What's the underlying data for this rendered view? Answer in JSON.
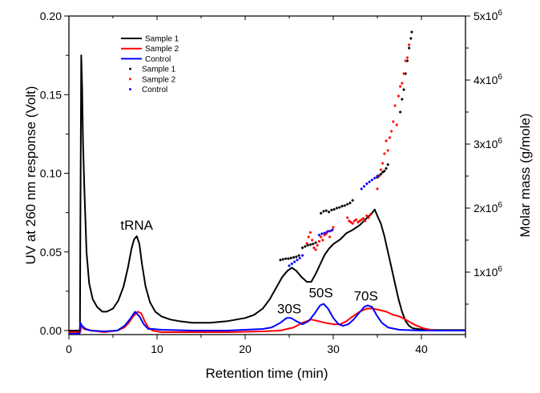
{
  "chart_data": {
    "type": "line",
    "title": "",
    "xlabel": "Retention time (min)",
    "ylabel": "UV at 260 nm response (Volt)",
    "y2label": "Molar mass (g/mole)",
    "xlim": [
      0,
      45
    ],
    "ylim": [
      -0.002,
      0.2
    ],
    "y2lim": [
      0,
      5000000
    ],
    "grid": false,
    "legend_position": "top-left",
    "x_ticks": [
      0,
      10,
      20,
      30,
      40
    ],
    "x_tick_labels": [
      "0",
      "10",
      "20",
      "30",
      "40"
    ],
    "y_ticks": [
      0.0,
      0.05,
      0.1,
      0.15,
      0.2
    ],
    "y_tick_labels": [
      "0.00",
      "0.05",
      "0.10",
      "0.15",
      "0.20"
    ],
    "y2_ticks": [
      1000000,
      2000000,
      3000000,
      4000000,
      5000000
    ],
    "y2_tick_labels": [
      {
        "base": "1x10",
        "exp": "6"
      },
      {
        "base": "2x10",
        "exp": "6"
      },
      {
        "base": "3x10",
        "exp": "6"
      },
      {
        "base": "4x10",
        "exp": "6"
      },
      {
        "base": "5x10",
        "exp": "6"
      }
    ],
    "legend": [
      {
        "label": "Sample 1",
        "kind": "line",
        "color": "#000000"
      },
      {
        "label": "Sample 2",
        "kind": "line",
        "color": "#ff0000"
      },
      {
        "label": "Control",
        "kind": "line",
        "color": "#0000ff"
      },
      {
        "label": "Sample 1",
        "kind": "dot",
        "color": "#000000"
      },
      {
        "label": "Sample 2",
        "kind": "dot",
        "color": "#ff0000"
      },
      {
        "label": "Control",
        "kind": "dot",
        "color": "#0000ff"
      }
    ],
    "annotations": [
      {
        "text": "tRNA",
        "x": 7.7,
        "y": 0.064
      },
      {
        "text": "30S",
        "x": 25.0,
        "y": 0.011
      },
      {
        "text": "50S",
        "x": 28.6,
        "y": 0.021
      },
      {
        "text": "70S",
        "x": 33.7,
        "y": 0.019
      }
    ],
    "series": [
      {
        "name": "Sample 1",
        "axis": "left",
        "color": "#000000",
        "x": [
          0,
          1.25,
          1.3,
          1.4,
          1.5,
          1.6,
          1.75,
          2.0,
          2.3,
          2.7,
          3.2,
          3.8,
          4.3,
          5.0,
          5.6,
          6.2,
          6.7,
          7.1,
          7.4,
          7.7,
          8.0,
          8.3,
          8.7,
          9.2,
          9.8,
          10.5,
          11.5,
          12.5,
          14,
          16,
          18,
          20,
          21,
          22,
          22.8,
          23.5,
          24.2,
          24.8,
          25.3,
          25.8,
          26.4,
          27.0,
          27.5,
          28.0,
          28.5,
          29.0,
          29.5,
          30.0,
          30.8,
          31.5,
          32.2,
          33.0,
          33.7,
          34.3,
          34.7,
          35.0,
          35.4,
          35.8,
          36.2,
          36.6,
          37.0,
          37.4,
          37.8,
          38.2,
          38.6,
          39.0,
          39.6,
          40.5,
          42,
          45
        ],
        "y": [
          0,
          0,
          0.065,
          0.175,
          0.155,
          0.12,
          0.09,
          0.05,
          0.03,
          0.02,
          0.015,
          0.012,
          0.012,
          0.014,
          0.019,
          0.028,
          0.04,
          0.052,
          0.058,
          0.06,
          0.055,
          0.042,
          0.028,
          0.018,
          0.012,
          0.009,
          0.007,
          0.006,
          0.005,
          0.005,
          0.006,
          0.008,
          0.01,
          0.014,
          0.02,
          0.027,
          0.034,
          0.038,
          0.04,
          0.038,
          0.034,
          0.031,
          0.031,
          0.036,
          0.042,
          0.048,
          0.052,
          0.055,
          0.058,
          0.062,
          0.064,
          0.067,
          0.071,
          0.074,
          0.077,
          0.073,
          0.068,
          0.06,
          0.05,
          0.04,
          0.03,
          0.02,
          0.012,
          0.006,
          0.003,
          0.0015,
          0.001,
          0.0005,
          0.0003,
          0.0003
        ]
      },
      {
        "name": "Sample 2",
        "axis": "left",
        "color": "#ff0000",
        "x": [
          0,
          1.3,
          1.4,
          1.7,
          2.5,
          4,
          5.5,
          6.3,
          6.8,
          7.3,
          7.8,
          8.2,
          8.6,
          9.0,
          9.5,
          10.5,
          14,
          18,
          22,
          24,
          25.5,
          26.5,
          27.5,
          28.3,
          29.0,
          30.0,
          30.8,
          31.5,
          32.2,
          33.0,
          33.8,
          34.5,
          35.3,
          36.0,
          36.8,
          37.5,
          38.2,
          38.8,
          39.5,
          40.2,
          41.0,
          42,
          45
        ],
        "y": [
          -0.001,
          -0.001,
          0.003,
          0.001,
          0.0,
          -0.001,
          0.0,
          0.002,
          0.005,
          0.009,
          0.012,
          0.011,
          0.006,
          0.002,
          0.0,
          -0.001,
          -0.001,
          -0.001,
          -0.0005,
          0.0,
          0.002,
          0.005,
          0.007,
          0.006,
          0.005,
          0.004,
          0.004,
          0.006,
          0.009,
          0.012,
          0.014,
          0.014,
          0.013,
          0.012,
          0.01,
          0.009,
          0.007,
          0.005,
          0.003,
          0.0015,
          0.0005,
          0.0,
          0.0
        ]
      },
      {
        "name": "Control",
        "axis": "left",
        "color": "#0000ff",
        "x": [
          0,
          1.2,
          1.3,
          1.5,
          1.9,
          2.5,
          4,
          5.5,
          6.3,
          6.9,
          7.5,
          8.0,
          8.5,
          9.0,
          9.5,
          10.5,
          14,
          18,
          22,
          23,
          24,
          24.7,
          25.2,
          25.8,
          26.5,
          27.2,
          27.9,
          28.5,
          28.9,
          29.4,
          30.0,
          30.6,
          31.1,
          31.7,
          32.3,
          32.9,
          33.5,
          33.9,
          34.4,
          34.9,
          35.5,
          36.2,
          37.5,
          40,
          45
        ],
        "y": [
          -0.002,
          -0.002,
          0.005,
          0.003,
          0.001,
          0.0,
          -0.0005,
          0.0,
          0.003,
          0.007,
          0.012,
          0.009,
          0.004,
          0.001,
          0.001,
          0.0005,
          0.0,
          0.0,
          0.001,
          0.002,
          0.005,
          0.008,
          0.008,
          0.006,
          0.004,
          0.006,
          0.011,
          0.016,
          0.017,
          0.014,
          0.008,
          0.004,
          0.003,
          0.004,
          0.007,
          0.011,
          0.015,
          0.016,
          0.015,
          0.01,
          0.005,
          0.002,
          0.0005,
          0.0,
          0.0
        ]
      }
    ],
    "scatter_series": [
      {
        "name": "Sample 1",
        "axis": "right",
        "color": "#000000",
        "x": [
          24.0,
          24.3,
          24.6,
          24.9,
          25.2,
          25.5,
          25.8,
          26.1,
          26.5,
          26.8,
          27.1,
          27.4,
          27.7,
          28.0,
          28.6,
          28.9,
          29.2,
          29.5,
          29.8,
          30.1,
          30.4,
          30.7,
          31.0,
          31.3,
          31.6,
          31.9,
          32.2,
          35.0,
          35.2,
          35.4,
          35.6,
          35.8,
          36.0,
          36.2,
          37.6,
          37.8,
          38.0,
          38.2,
          38.4,
          38.6,
          38.8,
          38.9
        ],
        "y": [
          1.19,
          1.2,
          1.21,
          1.21,
          1.22,
          1.23,
          1.24,
          1.26,
          1.38,
          1.4,
          1.42,
          1.43,
          1.44,
          1.46,
          1.92,
          1.95,
          1.96,
          1.94,
          1.97,
          1.98,
          2.0,
          2.01,
          2.03,
          2.04,
          2.06,
          2.08,
          2.12,
          2.48,
          2.51,
          2.53,
          2.56,
          2.58,
          2.62,
          2.68,
          3.5,
          3.7,
          3.85,
          4.1,
          4.3,
          4.5,
          4.65,
          4.75
        ]
      },
      {
        "name": "Sample 2",
        "axis": "right",
        "color": "#ff0000",
        "x": [
          27.0,
          27.2,
          27.4,
          27.6,
          27.8,
          28.0,
          28.2,
          28.4,
          28.6,
          28.8,
          29.0,
          29.2,
          29.4,
          29.6,
          29.8,
          30.0,
          31.6,
          31.8,
          32.0,
          32.2,
          32.4,
          32.6,
          32.8,
          33.0,
          33.2,
          33.4,
          33.6,
          33.8,
          34.0,
          34.2,
          35.0,
          35.2,
          35.4,
          35.6,
          35.8,
          36.0,
          36.2,
          36.4,
          36.6,
          36.8,
          37.0,
          37.2,
          37.4,
          37.6,
          37.8,
          38.0,
          38.2,
          38.4,
          38.6
        ],
        "y": [
          1.45,
          1.55,
          1.62,
          1.5,
          1.38,
          1.35,
          1.42,
          1.48,
          1.55,
          1.5,
          1.58,
          1.6,
          1.64,
          1.55,
          1.65,
          1.7,
          1.85,
          1.8,
          1.78,
          1.76,
          1.8,
          1.82,
          1.78,
          1.8,
          1.82,
          1.84,
          1.8,
          1.88,
          1.85,
          1.9,
          2.3,
          2.5,
          2.6,
          2.7,
          2.85,
          3.05,
          2.9,
          3.1,
          3.2,
          3.35,
          3.6,
          3.3,
          3.75,
          3.9,
          3.95,
          4.1,
          4.3,
          4.35,
          4.55
        ]
      },
      {
        "name": "Control",
        "axis": "right",
        "color": "#0000ff",
        "x": [
          25.0,
          25.3,
          25.6,
          25.9,
          26.2,
          26.5,
          28.4,
          28.7,
          29.0,
          29.3,
          29.6,
          29.9,
          33.2,
          33.5,
          33.8,
          34.1,
          34.4,
          34.7,
          35.0
        ],
        "y": [
          1.1,
          1.13,
          1.16,
          1.19,
          1.22,
          1.26,
          1.58,
          1.6,
          1.61,
          1.63,
          1.64,
          1.66,
          2.3,
          2.34,
          2.38,
          2.41,
          2.44,
          2.47,
          2.5
        ]
      }
    ]
  }
}
